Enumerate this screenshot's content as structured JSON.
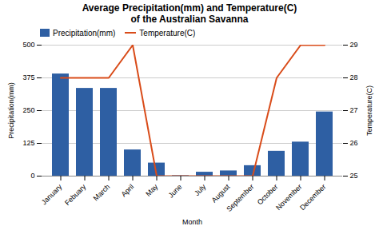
{
  "chart_data": {
    "type": "bar",
    "title": "Average Precipitation(mm) and Temperature(C)\nof the Australian Savanna",
    "xlabel": "Month",
    "ylabel": "Precipitation(mm)",
    "y2label": "Temperature(C)",
    "categories": [
      "January",
      "Febuary",
      "March",
      "April",
      "May",
      "June",
      "July",
      "August",
      "September",
      "October",
      "November",
      "December"
    ],
    "series": [
      {
        "name": "Precipitation(mm)",
        "type": "bar",
        "color": "#2e5fa3",
        "values": [
          390,
          335,
          335,
          100,
          50,
          2,
          15,
          20,
          40,
          95,
          130,
          245
        ]
      },
      {
        "name": "Temperature(C)",
        "type": "line",
        "color": "#d94c1a",
        "axis": "y2",
        "values": [
          28,
          28,
          28,
          29,
          25,
          25,
          25,
          25,
          25,
          28,
          29,
          29
        ]
      }
    ],
    "ylim": [
      0,
      500
    ],
    "yticks": [
      0,
      125,
      250,
      375,
      500
    ],
    "y2lim": [
      25,
      29
    ],
    "y2ticks": [
      25,
      26,
      27,
      28,
      29
    ],
    "grid": true,
    "legend": "upper left"
  }
}
